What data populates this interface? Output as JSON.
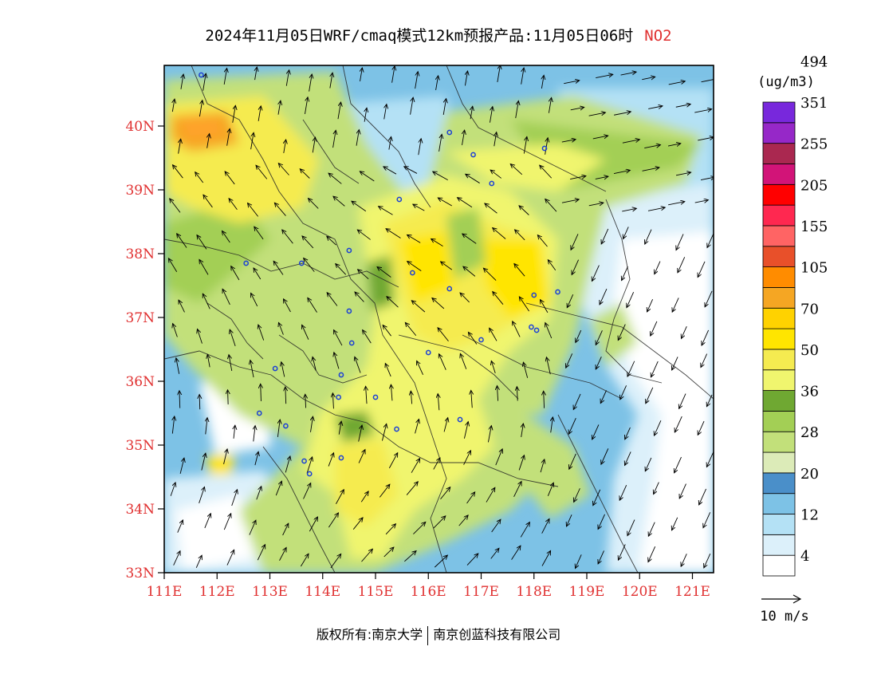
{
  "title": {
    "text": "2024年11月05日WRF/cmaq模式12km预报产品:11月05日06时",
    "pollutant": "NO2",
    "pollutant_color": "#e03030"
  },
  "map": {
    "lat_labels": [
      "40N",
      "39N",
      "38N",
      "37N",
      "36N",
      "35N",
      "34N",
      "33N"
    ],
    "lon_labels": [
      "111E",
      "112E",
      "113E",
      "114E",
      "115E",
      "116E",
      "117E",
      "118E",
      "119E",
      "120E",
      "121E"
    ],
    "lat_range": [
      33,
      40.95
    ],
    "lon_range": [
      111,
      121.4
    ],
    "label_color": "#e03030",
    "cities": [
      {
        "lon": 116.4,
        "lat": 39.9
      },
      {
        "lon": 117.2,
        "lat": 39.1
      },
      {
        "lon": 114.5,
        "lat": 38.05
      },
      {
        "lon": 117.0,
        "lat": 36.65
      },
      {
        "lon": 113.65,
        "lat": 34.75
      },
      {
        "lon": 112.55,
        "lat": 37.85
      },
      {
        "lon": 111.7,
        "lat": 40.8
      },
      {
        "lon": 115.45,
        "lat": 38.85
      },
      {
        "lon": 118.2,
        "lat": 39.65
      },
      {
        "lon": 116.85,
        "lat": 39.55
      },
      {
        "lon": 118.05,
        "lat": 36.8
      },
      {
        "lon": 115.7,
        "lat": 37.7
      },
      {
        "lon": 114.55,
        "lat": 36.6
      },
      {
        "lon": 114.35,
        "lat": 36.1
      },
      {
        "lon": 115.0,
        "lat": 35.75
      },
      {
        "lon": 116.6,
        "lat": 35.4
      },
      {
        "lon": 113.6,
        "lat": 37.85
      },
      {
        "lon": 114.5,
        "lat": 37.1
      },
      {
        "lon": 113.1,
        "lat": 36.2
      },
      {
        "lon": 112.8,
        "lat": 35.5
      },
      {
        "lon": 113.3,
        "lat": 35.3
      },
      {
        "lon": 114.3,
        "lat": 35.75
      },
      {
        "lon": 115.4,
        "lat": 35.25
      },
      {
        "lon": 116.0,
        "lat": 36.45
      },
      {
        "lon": 116.4,
        "lat": 37.45
      },
      {
        "lon": 118.0,
        "lat": 37.35
      },
      {
        "lon": 114.35,
        "lat": 34.8
      },
      {
        "lon": 113.75,
        "lat": 34.55
      },
      {
        "lon": 117.95,
        "lat": 36.85
      },
      {
        "lon": 118.45,
        "lat": 37.4
      }
    ]
  },
  "legend": {
    "units": "(ug/m3)",
    "colors": [
      "#ffffff",
      "#dcf0fa",
      "#b4e1f5",
      "#7dc2e6",
      "#4a8fc9",
      "#dcebb8",
      "#c2e07a",
      "#a3cf55",
      "#6fa832",
      "#f0f56e",
      "#f5eb50",
      "#ffe500",
      "#ffd200",
      "#f5a623",
      "#ff8c00",
      "#e8502a",
      "#ff6464",
      "#ff2850",
      "#ff0000",
      "#d21478",
      "#aa2850",
      "#9628c8",
      "#7828dc"
    ],
    "labels": [
      "4",
      "12",
      "20",
      "28",
      "36",
      "50",
      "70",
      "105",
      "155",
      "205",
      "255",
      "351",
      "494"
    ],
    "wind_reference": "10 m/s"
  },
  "copyright": {
    "left": "版权所有:南京大学",
    "right": "南京创蓝科技有限公司"
  }
}
